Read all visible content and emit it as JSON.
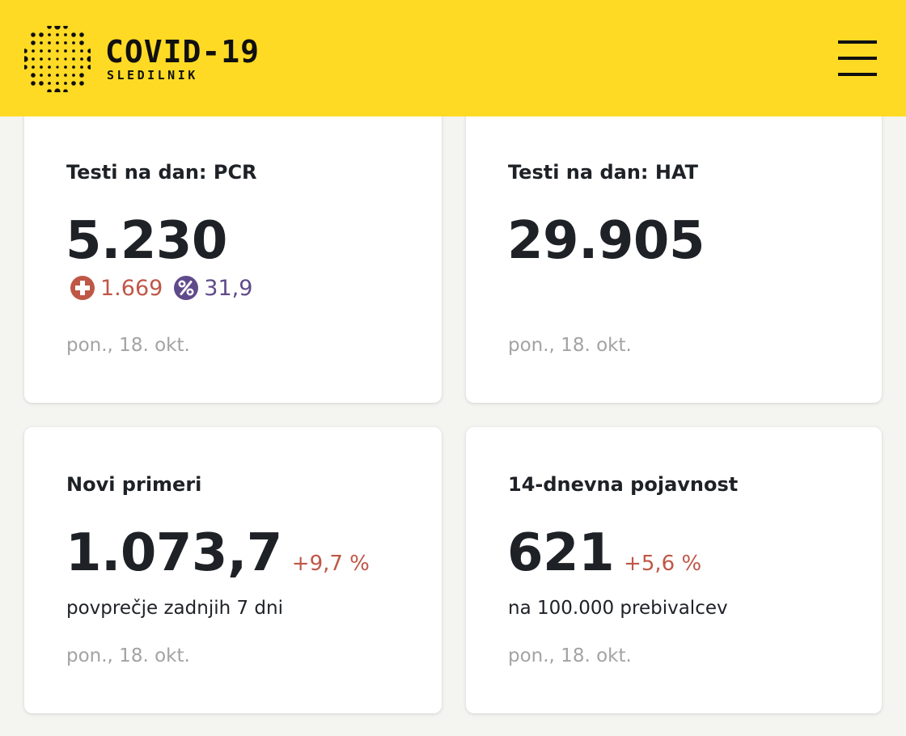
{
  "header": {
    "title": "COVID-19",
    "subtitle": "SLEDILNIK",
    "logo_icon": "dotted-virus-logo-icon",
    "menu_icon": "hamburger-menu-icon"
  },
  "colors": {
    "header_bg": "#ffda24",
    "page_bg": "#f4f4f1",
    "text_dark": "#1e2126",
    "text_muted": "#a3a3a3",
    "positive_red": "#bf5747",
    "percent_purple": "#5f4a8b"
  },
  "cards": [
    {
      "title": "Testi na dan: PCR",
      "value": "5.230",
      "positive_icon": "plus-circle-icon",
      "positive_count": "1.669",
      "percent_icon": "percent-circle-icon",
      "percent_value": "31,9",
      "date": "pon., 18. okt."
    },
    {
      "title": "Testi na dan: HAT",
      "value": "29.905",
      "date": "pon., 18. okt."
    },
    {
      "title": "Novi primeri",
      "value": "1.073,7",
      "change": "+9,7 %",
      "subtitle": "povprečje zadnjih 7 dni",
      "date": "pon., 18. okt."
    },
    {
      "title": "14-dnevna pojavnost",
      "value": "621",
      "change": "+5,6 %",
      "subtitle": "na 100.000 prebivalcev",
      "date": "pon., 18. okt."
    }
  ]
}
